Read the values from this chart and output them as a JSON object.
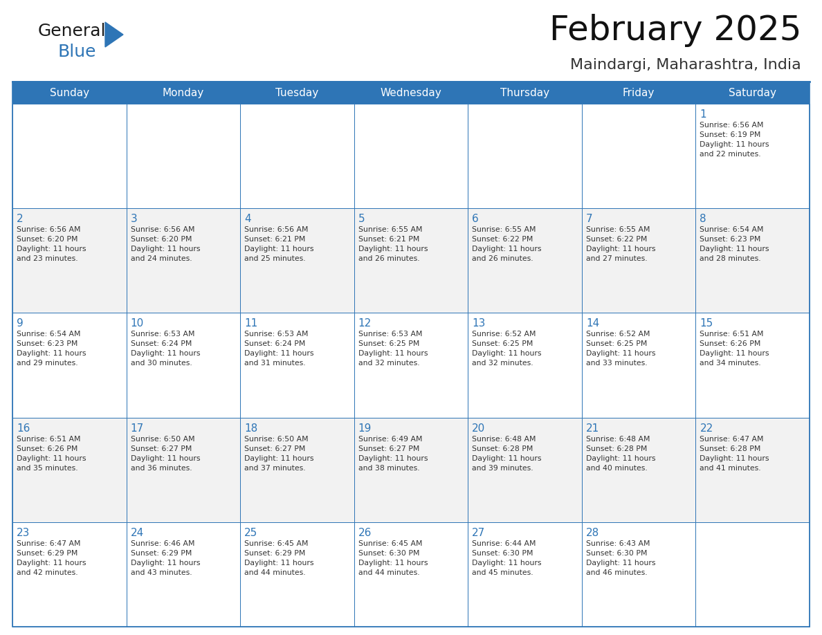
{
  "title": "February 2025",
  "subtitle": "Maindargi, Maharashtra, India",
  "header_bg": "#2E75B6",
  "header_text_color": "#FFFFFF",
  "cell_bg_white": "#FFFFFF",
  "cell_bg_gray": "#F2F2F2",
  "cell_border_color": "#2E75B6",
  "day_num_color": "#2E75B6",
  "info_text_color": "#333333",
  "day_headers": [
    "Sunday",
    "Monday",
    "Tuesday",
    "Wednesday",
    "Thursday",
    "Friday",
    "Saturday"
  ],
  "title_fontsize": 36,
  "subtitle_fontsize": 16,
  "header_fontsize": 11,
  "day_num_fontsize": 11,
  "cell_fontsize": 7.8,
  "logo_color1": "#1a1a1a",
  "logo_color2": "#2E75B6",
  "weeks": [
    [
      {
        "day": "",
        "info": ""
      },
      {
        "day": "",
        "info": ""
      },
      {
        "day": "",
        "info": ""
      },
      {
        "day": "",
        "info": ""
      },
      {
        "day": "",
        "info": ""
      },
      {
        "day": "",
        "info": ""
      },
      {
        "day": "1",
        "info": "Sunrise: 6:56 AM\nSunset: 6:19 PM\nDaylight: 11 hours\nand 22 minutes."
      }
    ],
    [
      {
        "day": "2",
        "info": "Sunrise: 6:56 AM\nSunset: 6:20 PM\nDaylight: 11 hours\nand 23 minutes."
      },
      {
        "day": "3",
        "info": "Sunrise: 6:56 AM\nSunset: 6:20 PM\nDaylight: 11 hours\nand 24 minutes."
      },
      {
        "day": "4",
        "info": "Sunrise: 6:56 AM\nSunset: 6:21 PM\nDaylight: 11 hours\nand 25 minutes."
      },
      {
        "day": "5",
        "info": "Sunrise: 6:55 AM\nSunset: 6:21 PM\nDaylight: 11 hours\nand 26 minutes."
      },
      {
        "day": "6",
        "info": "Sunrise: 6:55 AM\nSunset: 6:22 PM\nDaylight: 11 hours\nand 26 minutes."
      },
      {
        "day": "7",
        "info": "Sunrise: 6:55 AM\nSunset: 6:22 PM\nDaylight: 11 hours\nand 27 minutes."
      },
      {
        "day": "8",
        "info": "Sunrise: 6:54 AM\nSunset: 6:23 PM\nDaylight: 11 hours\nand 28 minutes."
      }
    ],
    [
      {
        "day": "9",
        "info": "Sunrise: 6:54 AM\nSunset: 6:23 PM\nDaylight: 11 hours\nand 29 minutes."
      },
      {
        "day": "10",
        "info": "Sunrise: 6:53 AM\nSunset: 6:24 PM\nDaylight: 11 hours\nand 30 minutes."
      },
      {
        "day": "11",
        "info": "Sunrise: 6:53 AM\nSunset: 6:24 PM\nDaylight: 11 hours\nand 31 minutes."
      },
      {
        "day": "12",
        "info": "Sunrise: 6:53 AM\nSunset: 6:25 PM\nDaylight: 11 hours\nand 32 minutes."
      },
      {
        "day": "13",
        "info": "Sunrise: 6:52 AM\nSunset: 6:25 PM\nDaylight: 11 hours\nand 32 minutes."
      },
      {
        "day": "14",
        "info": "Sunrise: 6:52 AM\nSunset: 6:25 PM\nDaylight: 11 hours\nand 33 minutes."
      },
      {
        "day": "15",
        "info": "Sunrise: 6:51 AM\nSunset: 6:26 PM\nDaylight: 11 hours\nand 34 minutes."
      }
    ],
    [
      {
        "day": "16",
        "info": "Sunrise: 6:51 AM\nSunset: 6:26 PM\nDaylight: 11 hours\nand 35 minutes."
      },
      {
        "day": "17",
        "info": "Sunrise: 6:50 AM\nSunset: 6:27 PM\nDaylight: 11 hours\nand 36 minutes."
      },
      {
        "day": "18",
        "info": "Sunrise: 6:50 AM\nSunset: 6:27 PM\nDaylight: 11 hours\nand 37 minutes."
      },
      {
        "day": "19",
        "info": "Sunrise: 6:49 AM\nSunset: 6:27 PM\nDaylight: 11 hours\nand 38 minutes."
      },
      {
        "day": "20",
        "info": "Sunrise: 6:48 AM\nSunset: 6:28 PM\nDaylight: 11 hours\nand 39 minutes."
      },
      {
        "day": "21",
        "info": "Sunrise: 6:48 AM\nSunset: 6:28 PM\nDaylight: 11 hours\nand 40 minutes."
      },
      {
        "day": "22",
        "info": "Sunrise: 6:47 AM\nSunset: 6:28 PM\nDaylight: 11 hours\nand 41 minutes."
      }
    ],
    [
      {
        "day": "23",
        "info": "Sunrise: 6:47 AM\nSunset: 6:29 PM\nDaylight: 11 hours\nand 42 minutes."
      },
      {
        "day": "24",
        "info": "Sunrise: 6:46 AM\nSunset: 6:29 PM\nDaylight: 11 hours\nand 43 minutes."
      },
      {
        "day": "25",
        "info": "Sunrise: 6:45 AM\nSunset: 6:29 PM\nDaylight: 11 hours\nand 44 minutes."
      },
      {
        "day": "26",
        "info": "Sunrise: 6:45 AM\nSunset: 6:30 PM\nDaylight: 11 hours\nand 44 minutes."
      },
      {
        "day": "27",
        "info": "Sunrise: 6:44 AM\nSunset: 6:30 PM\nDaylight: 11 hours\nand 45 minutes."
      },
      {
        "day": "28",
        "info": "Sunrise: 6:43 AM\nSunset: 6:30 PM\nDaylight: 11 hours\nand 46 minutes."
      },
      {
        "day": "",
        "info": ""
      }
    ]
  ]
}
